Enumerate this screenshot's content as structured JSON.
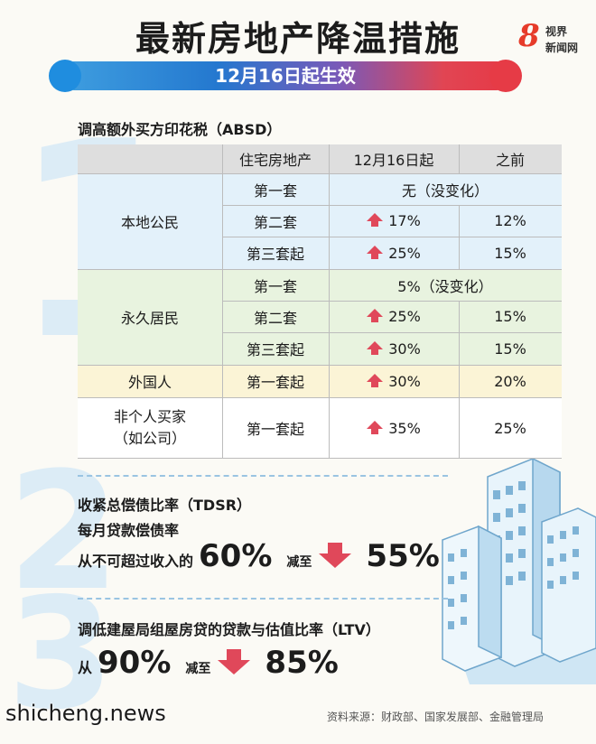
{
  "header": {
    "title": "最新房地产降温措施",
    "logo_number": "8",
    "logo_line1": "视界",
    "logo_line2": "新闻网",
    "banner": "12月16日起生效"
  },
  "section1": {
    "number": "1",
    "title": "调高额外买方印花税（ABSD）",
    "columns": [
      "住宅房地产",
      "12月16日起",
      "之前"
    ],
    "groups": [
      {
        "buyer": "本地公民",
        "rows": [
          {
            "property": "第一套",
            "merged": "无（没变化）"
          },
          {
            "property": "第二套",
            "new": "17%",
            "old": "12%"
          },
          {
            "property": "第三套起",
            "new": "25%",
            "old": "15%"
          }
        ]
      },
      {
        "buyer": "永久居民",
        "rows": [
          {
            "property": "第一套",
            "merged": "5%（没变化）"
          },
          {
            "property": "第二套",
            "new": "25%",
            "old": "15%"
          },
          {
            "property": "第三套起",
            "new": "30%",
            "old": "15%"
          }
        ]
      },
      {
        "buyer": "外国人",
        "rows": [
          {
            "property": "第一套起",
            "new": "30%",
            "old": "20%"
          }
        ]
      },
      {
        "buyer_line1": "非个人买家",
        "buyer_line2": "（如公司）",
        "rows": [
          {
            "property": "第一套起",
            "new": "35%",
            "old": "25%"
          }
        ]
      }
    ]
  },
  "section2": {
    "number": "2",
    "title": "收紧总偿债比率（TDSR）",
    "subtitle": "每月贷款偿债率",
    "prefix": "从不可超过收入的",
    "from_value": "60%",
    "mid_text": "减至",
    "to_value": "55%"
  },
  "section3": {
    "number": "3",
    "title": "调低建屋局组屋房贷的贷款与估值比率（LTV）",
    "prefix": "从",
    "from_value": "90%",
    "mid_text": "减至",
    "to_value": "85%"
  },
  "footer": {
    "watermark": "shicheng.news",
    "source": "资料来源：财政部、国家发展部、金融管理局"
  },
  "colors": {
    "accent_red": "#e0485a",
    "accent_blue": "#2478cf"
  }
}
